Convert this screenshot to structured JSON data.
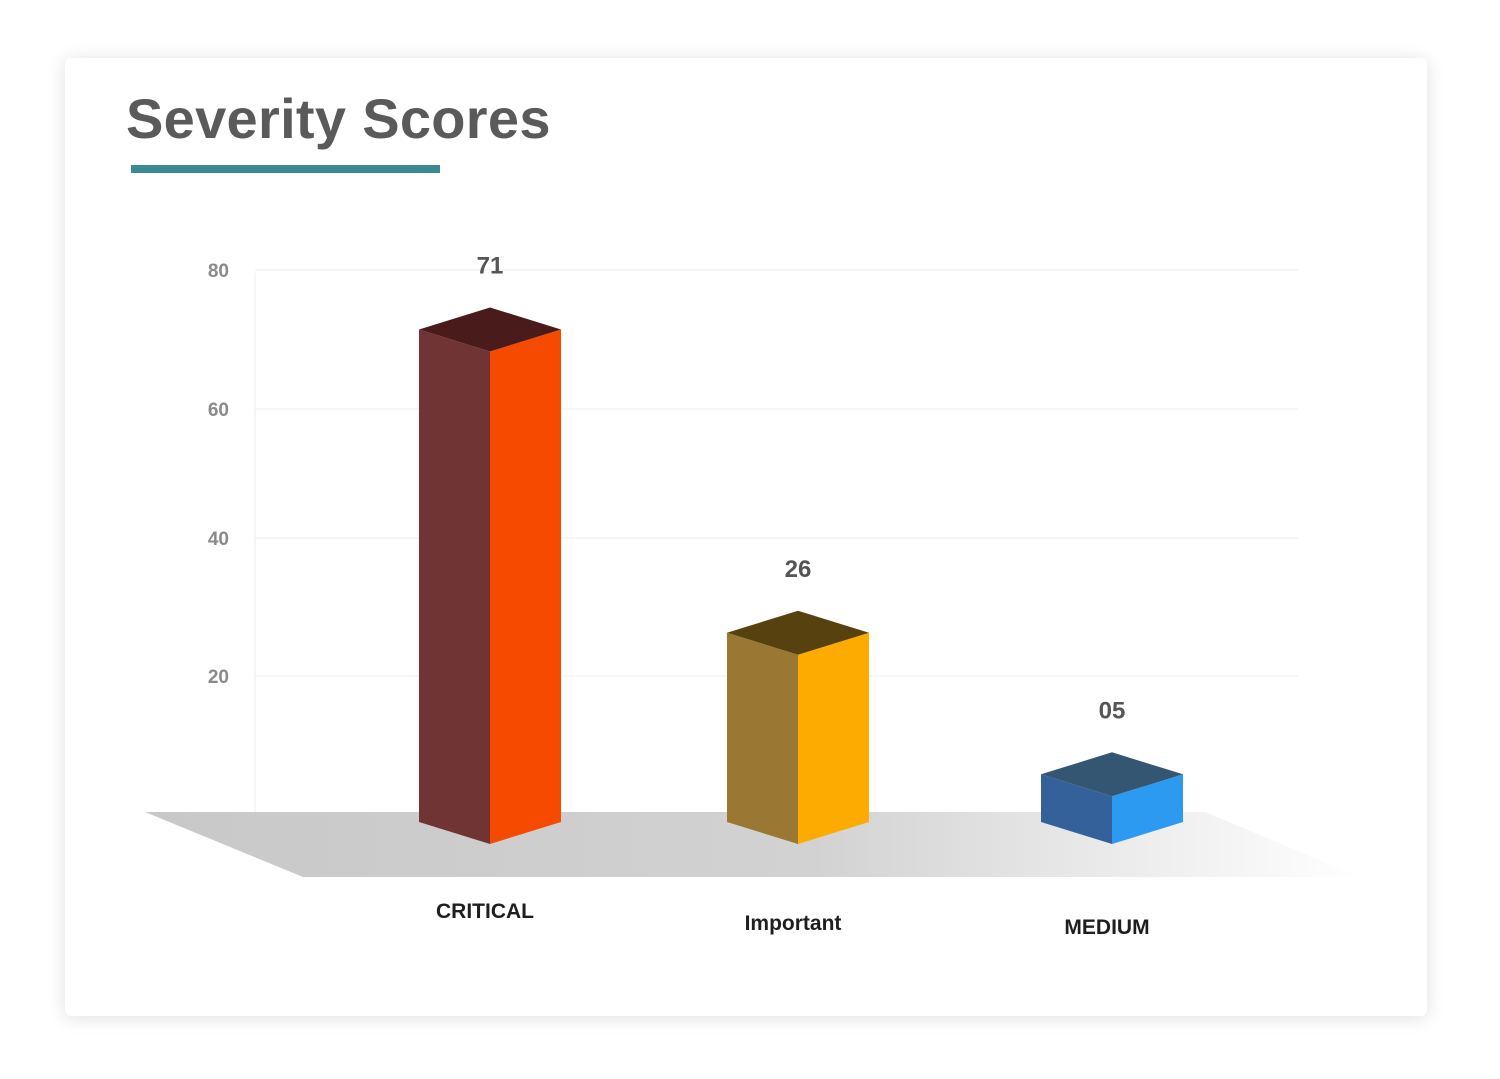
{
  "chart_data": {
    "type": "bar",
    "title": "Severity Scores",
    "categories": [
      "CRITICAL",
      "Important",
      "MEDIUM"
    ],
    "values": [
      71,
      26,
      5
    ],
    "value_labels": [
      "71",
      "26",
      "05"
    ],
    "ylim": [
      0,
      80
    ],
    "yticks": [
      20,
      40,
      60,
      80
    ],
    "grid": true,
    "legend": "none",
    "colors": [
      {
        "front": "#f54a00",
        "side": "#703434",
        "top": "#4a1b1b"
      },
      {
        "front": "#fdab00",
        "side": "#9a7834",
        "top": "#57420f"
      },
      {
        "front": "#2b9af0",
        "side": "#35619a",
        "top": "#345673"
      }
    ],
    "accent_color": "#3a8a93"
  }
}
